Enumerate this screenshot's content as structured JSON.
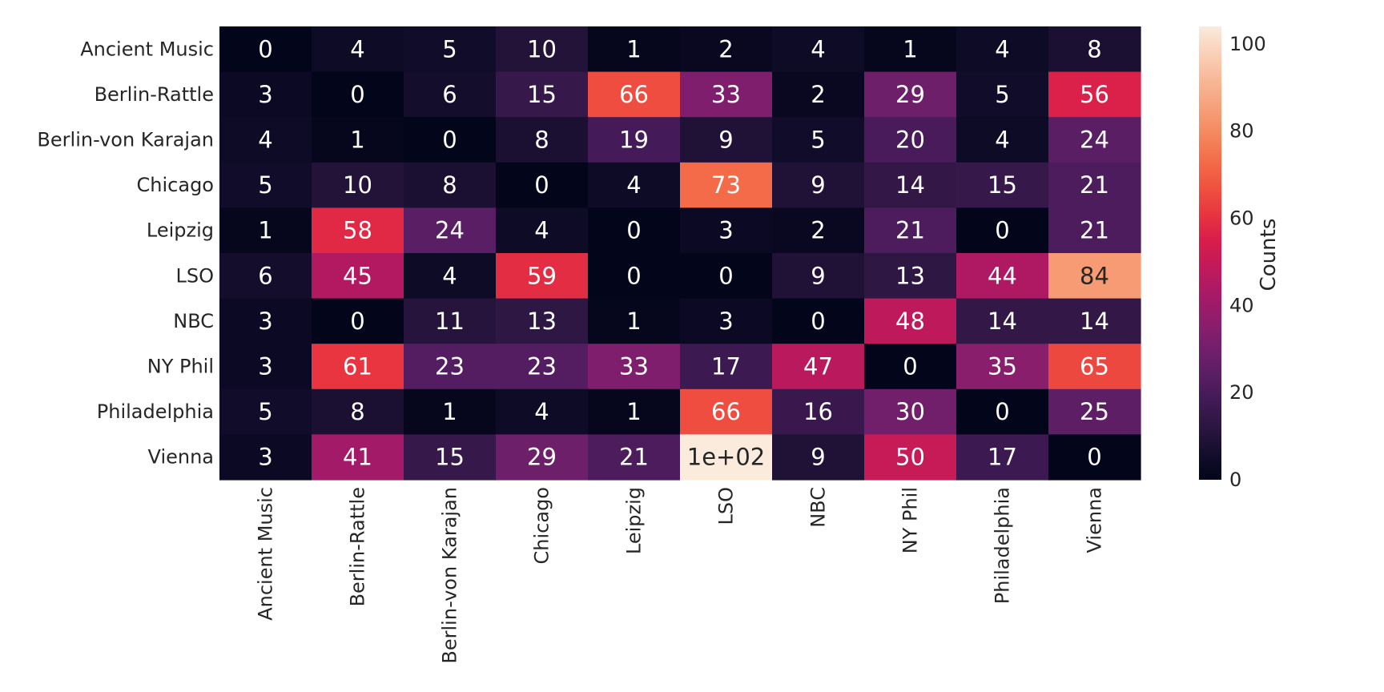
{
  "chart_data": {
    "type": "heatmap",
    "rows": [
      "Ancient Music",
      "Berlin-Rattle",
      "Berlin-von Karajan",
      "Chicago",
      "Leipzig",
      "LSO",
      "NBC",
      "NY Phil",
      "Philadelphia",
      "Vienna"
    ],
    "columns": [
      "Ancient Music",
      "Berlin-Rattle",
      "Berlin-von Karajan",
      "Chicago",
      "Leipzig",
      "LSO",
      "NBC",
      "NY Phil",
      "Philadelphia",
      "Vienna"
    ],
    "values": [
      [
        0,
        4,
        5,
        10,
        1,
        2,
        4,
        1,
        4,
        8
      ],
      [
        3,
        0,
        6,
        15,
        66,
        33,
        2,
        29,
        5,
        56
      ],
      [
        4,
        1,
        0,
        8,
        19,
        9,
        5,
        20,
        4,
        24
      ],
      [
        5,
        10,
        8,
        0,
        4,
        73,
        9,
        14,
        15,
        21
      ],
      [
        1,
        58,
        24,
        4,
        0,
        3,
        2,
        21,
        0,
        21
      ],
      [
        6,
        45,
        4,
        59,
        0,
        0,
        9,
        13,
        44,
        84
      ],
      [
        3,
        0,
        11,
        13,
        1,
        3,
        0,
        48,
        14,
        14
      ],
      [
        3,
        61,
        23,
        23,
        33,
        17,
        47,
        0,
        35,
        65
      ],
      [
        5,
        8,
        1,
        4,
        1,
        66,
        16,
        30,
        0,
        25
      ],
      [
        3,
        41,
        15,
        29,
        21,
        104,
        9,
        50,
        17,
        0
      ]
    ],
    "annotations": [
      [
        "0",
        "4",
        "5",
        "10",
        "1",
        "2",
        "4",
        "1",
        "4",
        "8"
      ],
      [
        "3",
        "0",
        "6",
        "15",
        "66",
        "33",
        "2",
        "29",
        "5",
        "56"
      ],
      [
        "4",
        "1",
        "0",
        "8",
        "19",
        "9",
        "5",
        "20",
        "4",
        "24"
      ],
      [
        "5",
        "10",
        "8",
        "0",
        "4",
        "73",
        "9",
        "14",
        "15",
        "21"
      ],
      [
        "1",
        "58",
        "24",
        "4",
        "0",
        "3",
        "2",
        "21",
        "0",
        "21"
      ],
      [
        "6",
        "45",
        "4",
        "59",
        "0",
        "0",
        "9",
        "13",
        "44",
        "84"
      ],
      [
        "3",
        "0",
        "11",
        "13",
        "1",
        "3",
        "0",
        "48",
        "14",
        "14"
      ],
      [
        "3",
        "61",
        "23",
        "23",
        "33",
        "17",
        "47",
        "0",
        "35",
        "65"
      ],
      [
        "5",
        "8",
        "1",
        "4",
        "1",
        "66",
        "16",
        "30",
        "0",
        "25"
      ],
      [
        "3",
        "41",
        "15",
        "29",
        "21",
        "1e+02",
        "9",
        "50",
        "17",
        "0"
      ]
    ],
    "colorbar": {
      "label": "Counts",
      "range": [
        0,
        104
      ],
      "ticks": [
        0,
        20,
        40,
        60,
        80,
        100
      ],
      "colormap": "rocket",
      "colors": [
        "#03051a",
        "#140e2c",
        "#2c1641",
        "#421a56",
        "#5b1e65",
        "#751f6c",
        "#8f1d6c",
        "#aa1966",
        "#c21a59",
        "#d91d4b",
        "#e9363f",
        "#f05340",
        "#f36d4a",
        "#f5895f",
        "#f6a17b",
        "#f8b898",
        "#fad0b8",
        "#faebdd"
      ]
    },
    "annotation_colors": {
      "light_text": "#ffffff",
      "dark_text": "#262626"
    }
  }
}
